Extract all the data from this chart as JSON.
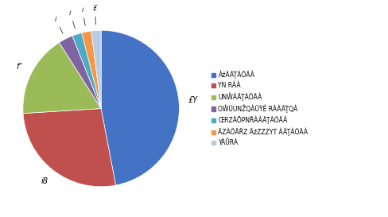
{
  "values": [
    47,
    27,
    17,
    3,
    2,
    2,
    2
  ],
  "colors": [
    "#4472C4",
    "#C0504D",
    "#9BBB59",
    "#8064A2",
    "#4BACC6",
    "#F79646",
    "#B8CCE4"
  ],
  "slice_labels": [
    "£Y",
    "i8",
    "f’",
    "i",
    "i",
    "i",
    "£"
  ],
  "legend_labels": [
    "ÀźÀÄŢÀŐÄÀ",
    "YN RÀÀ",
    "UNŴÀÄŢÀŐÄÀ",
    "OŴÜUNŽQÀÜŸÉ RÀÀÄŢQÀ",
    "ŒRZÄŌPNŘÀÀÄŢÀŐÄÀ",
    "ÄZÀŐÄŘZ ÄźZZZYT ÀÄŢÀŐÄÀ",
    "YÄŬRÀ"
  ],
  "startangle": 90,
  "figsize": [
    4.89,
    2.73
  ],
  "dpi": 100
}
